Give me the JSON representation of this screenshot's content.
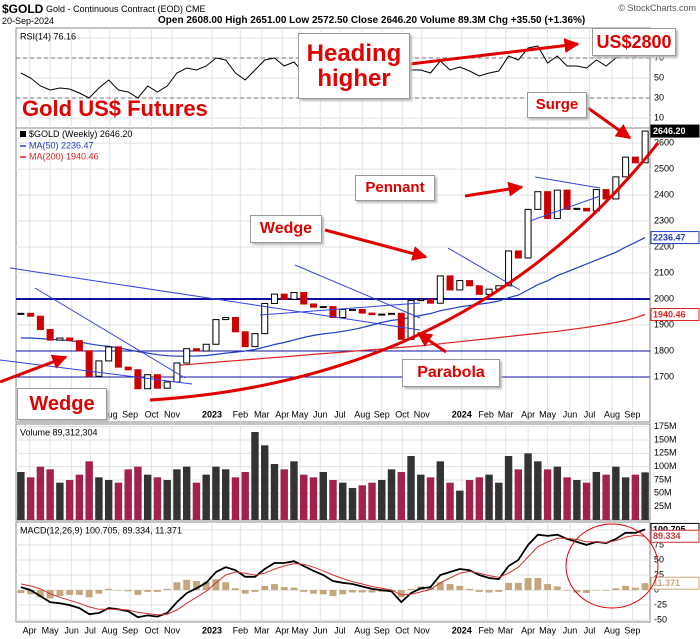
{
  "header": {
    "symbol": "$GOLD",
    "name": "Gold - Continuous Contract (EOD) CME",
    "date": "20-Sep-2024",
    "quote": "Open 2608.00 High 2651.00 Low 2572.50 Close 2646.20 Volume 89.3M Chg +35.50 (+1.36%)",
    "source": "© StockCharts.com"
  },
  "xaxis": {
    "xlim": [
      -0.5,
      64.5
    ],
    "xticks": [
      {
        "value": 0.9,
        "label": "Apr"
      },
      {
        "value": 3.0,
        "label": "May"
      },
      {
        "value": 5.2,
        "label": "Jun"
      },
      {
        "value": 7.1,
        "label": "Jul"
      },
      {
        "value": 9.1,
        "label": "Aug"
      },
      {
        "value": 11.2,
        "label": "Sep"
      },
      {
        "value": 13.4,
        "label": "Oct"
      },
      {
        "value": 15.5,
        "label": "Nov"
      },
      {
        "value": 19.6,
        "label": "2023"
      },
      {
        "value": 22.5,
        "label": "Feb"
      },
      {
        "value": 24.7,
        "label": "Mar"
      },
      {
        "value": 26.8,
        "label": "Apr"
      },
      {
        "value": 28.6,
        "label": "May"
      },
      {
        "value": 30.7,
        "label": "Jun"
      },
      {
        "value": 32.7,
        "label": "Jul"
      },
      {
        "value": 35.0,
        "label": "Aug"
      },
      {
        "value": 37.0,
        "label": "Sep"
      },
      {
        "value": 39.1,
        "label": "Oct"
      },
      {
        "value": 41.1,
        "label": "Nov"
      },
      {
        "value": 45.2,
        "label": "2024"
      },
      {
        "value": 47.7,
        "label": "Feb"
      },
      {
        "value": 49.7,
        "label": "Mar"
      },
      {
        "value": 52.0,
        "label": "Apr"
      },
      {
        "value": 54.0,
        "label": "May"
      },
      {
        "value": 56.3,
        "label": "Jun"
      },
      {
        "value": 58.3,
        "label": "Jul"
      },
      {
        "value": 60.6,
        "label": "Aug"
      },
      {
        "value": 62.7,
        "label": "Sep"
      }
    ]
  },
  "chart_data": [
    {
      "type": "candlestick",
      "title": "Gold US$ Futures",
      "legend": "$GOLD (Weekly) 2646.20",
      "last_label": "2646.20",
      "up_color": "#000000",
      "down_color": "#cc0000",
      "values": [
        1945,
        1934,
        1883,
        1842,
        1850,
        1840,
        1801,
        1703,
        1762,
        1816,
        1738,
        1728,
        1655,
        1709,
        1657,
        1681,
        1754,
        1809,
        1800,
        1826,
        1921,
        1929,
        1874,
        1817,
        1867,
        1983,
        2019,
        1999,
        2025,
        1981,
        1969,
        1971,
        1929,
        1960,
        1960,
        1946,
        1940,
        1942,
        1945,
        1845,
        1994,
        1999,
        1984,
        2089,
        2035,
        2071,
        2051,
        2018,
        2038,
        2051,
        2185,
        2158,
        2345,
        2413,
        2310,
        2419,
        2345,
        2349,
        2339,
        2421,
        2385,
        2470,
        2546,
        2524,
        2646.2
      ],
      "series": [
        {
          "name": "MA(50) 2236.47",
          "color": "#1f3fbf",
          "values": [
            1850,
            1850,
            1848,
            1845,
            1843,
            1840,
            1835,
            1828,
            1822,
            1818,
            1812,
            1805,
            1798,
            1792,
            1786,
            1782,
            1780,
            1780,
            1781,
            1783,
            1787,
            1792,
            1796,
            1800,
            1806,
            1815,
            1825,
            1833,
            1843,
            1852,
            1860,
            1866,
            1870,
            1876,
            1882,
            1890,
            1900,
            1910,
            1918,
            1922,
            1930,
            1937,
            1944,
            1955,
            1962,
            1970,
            1975,
            1980,
            1985,
            1992,
            2005,
            2015,
            2035,
            2055,
            2070,
            2090,
            2105,
            2120,
            2135,
            2150,
            2165,
            2180,
            2200,
            2218,
            2236.47
          ]
        },
        {
          "name": "MA(200) 1940.46",
          "color": "#dd2222",
          "values": [
            null,
            null,
            null,
            null,
            null,
            null,
            null,
            null,
            null,
            null,
            null,
            null,
            null,
            null,
            null,
            null,
            1745,
            1748,
            1751,
            1754,
            1757,
            1760,
            1763,
            1766,
            1769,
            1772,
            1775,
            1778,
            1781,
            1784,
            1787,
            1790,
            1793,
            1796,
            1799,
            1802,
            1805,
            1808,
            1811,
            1814,
            1817,
            1820,
            1824,
            1828,
            1832,
            1836,
            1840,
            1844,
            1848,
            1852,
            1856,
            1860,
            1864,
            1868,
            1872,
            1876,
            1881,
            1886,
            1891,
            1897,
            1903,
            1910,
            1918,
            1928,
            1940.46
          ]
        }
      ],
      "hlines": [
        2000,
        1800,
        1700
      ],
      "ylim": [
        1527,
        2658
      ],
      "yticks": [
        1700,
        1800,
        1900,
        2000,
        2100,
        2200,
        2300,
        2400,
        2500,
        2600
      ],
      "grid": true,
      "annotations": [
        "Heading higher",
        "US$2800",
        "Surge",
        "Pennant",
        "Wedge",
        "Parabola",
        "Wedge"
      ]
    },
    {
      "type": "line",
      "title": "RSI(14) 76.16",
      "color": "#000000",
      "values": [
        55,
        50,
        42,
        38,
        40,
        39,
        35,
        30,
        40,
        48,
        38,
        36,
        30,
        42,
        36,
        42,
        55,
        60,
        58,
        62,
        70,
        68,
        55,
        48,
        58,
        68,
        70,
        62,
        66,
        55,
        52,
        53,
        46,
        52,
        52,
        49,
        48,
        49,
        50,
        36,
        58,
        58,
        55,
        67,
        58,
        61,
        57,
        52,
        55,
        57,
        72,
        68,
        80,
        82,
        65,
        72,
        62,
        62,
        60,
        68,
        62,
        70,
        75,
        71,
        76.16
      ],
      "band_lines": [
        70,
        30
      ],
      "ylim": [
        0,
        100
      ],
      "yticks": [
        10,
        30,
        50,
        70,
        90
      ],
      "grid": true
    },
    {
      "type": "bar",
      "title": "Volume 89,312,304",
      "up_color": "#333333",
      "down_color": "#a3214f",
      "values": [
        90,
        80,
        100,
        95,
        70,
        75,
        85,
        110,
        80,
        75,
        70,
        95,
        100,
        85,
        80,
        75,
        95,
        100,
        70,
        85,
        100,
        95,
        80,
        90,
        165,
        140,
        105,
        95,
        110,
        85,
        80,
        90,
        75,
        70,
        60,
        65,
        70,
        75,
        95,
        90,
        120,
        85,
        80,
        110,
        70,
        55,
        75,
        80,
        85,
        70,
        120,
        95,
        125,
        110,
        95,
        100,
        80,
        75,
        70,
        90,
        85,
        100,
        80,
        85,
        89.312304
      ],
      "ylim": [
        0,
        180
      ],
      "yticks": [
        {
          "value": 25,
          "label": "25M"
        },
        {
          "value": 50,
          "label": "50M"
        },
        {
          "value": 75,
          "label": "75M"
        },
        {
          "value": 100,
          "label": "100M"
        },
        {
          "value": 125,
          "label": "125M"
        },
        {
          "value": 150,
          "label": "150M"
        },
        {
          "value": 175,
          "label": "175M"
        }
      ],
      "grid": true
    },
    {
      "type": "macd",
      "title": "MACD(12,26,9) 100.705, 89.334, 11.371",
      "series": [
        {
          "color": "#000000",
          "style": "line",
          "values": [
            5,
            0,
            -10,
            -20,
            -22,
            -25,
            -30,
            -40,
            -38,
            -30,
            -32,
            -35,
            -45,
            -42,
            -44,
            -38,
            -20,
            -5,
            3,
            12,
            30,
            38,
            33,
            22,
            22,
            35,
            45,
            45,
            48,
            40,
            32,
            25,
            15,
            12,
            10,
            6,
            2,
            0,
            -2,
            -20,
            -5,
            3,
            5,
            25,
            30,
            35,
            33,
            25,
            20,
            18,
            40,
            50,
            75,
            92,
            90,
            92,
            85,
            80,
            75,
            80,
            78,
            85,
            95,
            95,
            100.705
          ]
        },
        {
          "color": "#cc3333",
          "style": "line",
          "values": [
            10,
            7,
            2,
            -6,
            -12,
            -17,
            -22,
            -28,
            -32,
            -32,
            -32,
            -33,
            -37,
            -39,
            -41,
            -40,
            -33,
            -22,
            -12,
            -2,
            12,
            25,
            30,
            28,
            25,
            28,
            35,
            40,
            44,
            43,
            38,
            32,
            25,
            19,
            14,
            10,
            6,
            3,
            0,
            -8,
            -7,
            -3,
            1,
            12,
            20,
            28,
            31,
            28,
            24,
            21,
            28,
            38,
            55,
            72,
            80,
            86,
            86,
            84,
            80,
            80,
            79,
            82,
            88,
            91,
            89.334
          ]
        },
        {
          "color": "#c4a77c",
          "style": "bar",
          "values": [
            -5,
            -7,
            -12,
            -14,
            -10,
            -8,
            -8,
            -12,
            -6,
            2,
            0,
            -2,
            -8,
            -3,
            -3,
            2,
            13,
            17,
            15,
            14,
            18,
            13,
            3,
            -6,
            -3,
            7,
            10,
            5,
            4,
            -3,
            -6,
            -7,
            -10,
            -7,
            -4,
            -4,
            -4,
            -3,
            -2,
            -12,
            2,
            6,
            4,
            13,
            10,
            7,
            2,
            -3,
            -4,
            -3,
            12,
            12,
            20,
            20,
            10,
            6,
            -1,
            -4,
            -5,
            0,
            -1,
            3,
            7,
            4,
            11.371
          ]
        }
      ],
      "ylim": [
        -53,
        113
      ],
      "yticks": [
        -50,
        -25,
        0,
        25,
        50,
        75,
        100
      ],
      "grid": true
    }
  ]
}
